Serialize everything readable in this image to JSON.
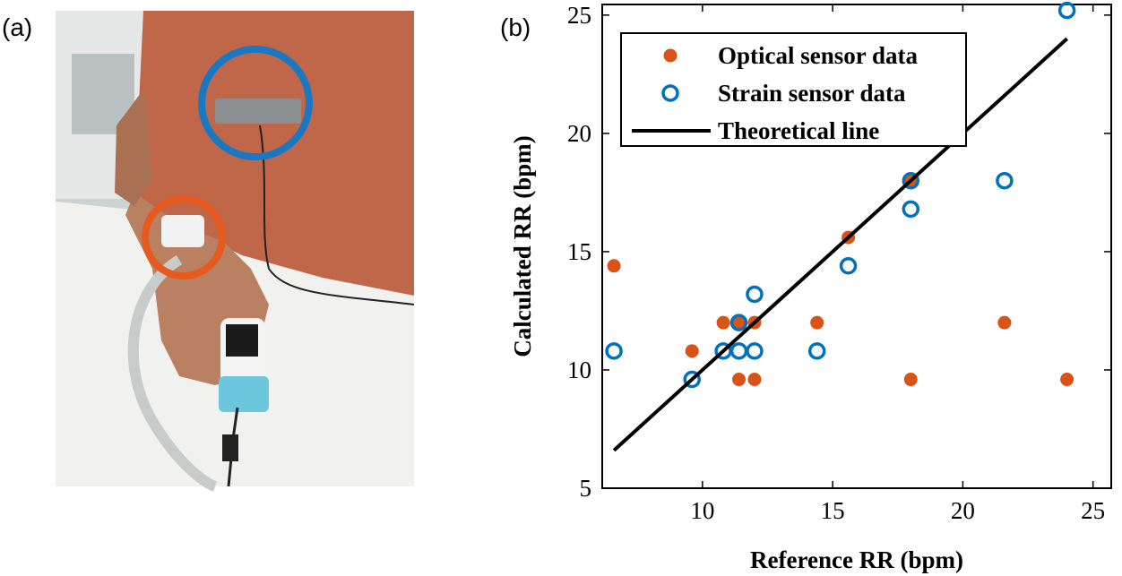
{
  "panel_labels": [
    "(a)",
    "(b)"
  ],
  "chart_data": {
    "type": "scatter",
    "xlabel": "Reference RR (bpm)",
    "ylabel": "Calculated RR (bpm)",
    "xlim": [
      6.15,
      25.7
    ],
    "ylim": [
      5,
      25.45
    ],
    "xticks": [
      10,
      15,
      20,
      25
    ],
    "yticks": [
      5,
      10,
      15,
      20,
      25
    ],
    "grid": false,
    "legend": "upper left",
    "series": [
      {
        "name": "Optical sensor data",
        "color": "#d95319",
        "marker": "filled",
        "x": [
          6.6,
          9.6,
          10.8,
          11.4,
          11.4,
          12,
          12,
          14.4,
          15.6,
          18,
          18,
          21.6,
          24
        ],
        "values": [
          14.4,
          10.8,
          12,
          12,
          9.6,
          12,
          9.6,
          12,
          15.6,
          18,
          9.6,
          12,
          9.6
        ]
      },
      {
        "name": "Strain sensor data",
        "color": "#0072bd",
        "marker": "open",
        "x": [
          6.6,
          9.6,
          10.8,
          11.4,
          11.4,
          12,
          12,
          14.4,
          15.6,
          18,
          18,
          21.6,
          24
        ],
        "values": [
          10.8,
          9.6,
          10.8,
          10.8,
          12,
          13.2,
          10.8,
          10.8,
          14.4,
          18,
          16.8,
          18,
          25.2
        ]
      },
      {
        "name": "Theoretical line",
        "color": "#000000",
        "marker": "none",
        "x": [
          6.6,
          24
        ],
        "values": [
          6.6,
          24
        ]
      }
    ]
  }
}
